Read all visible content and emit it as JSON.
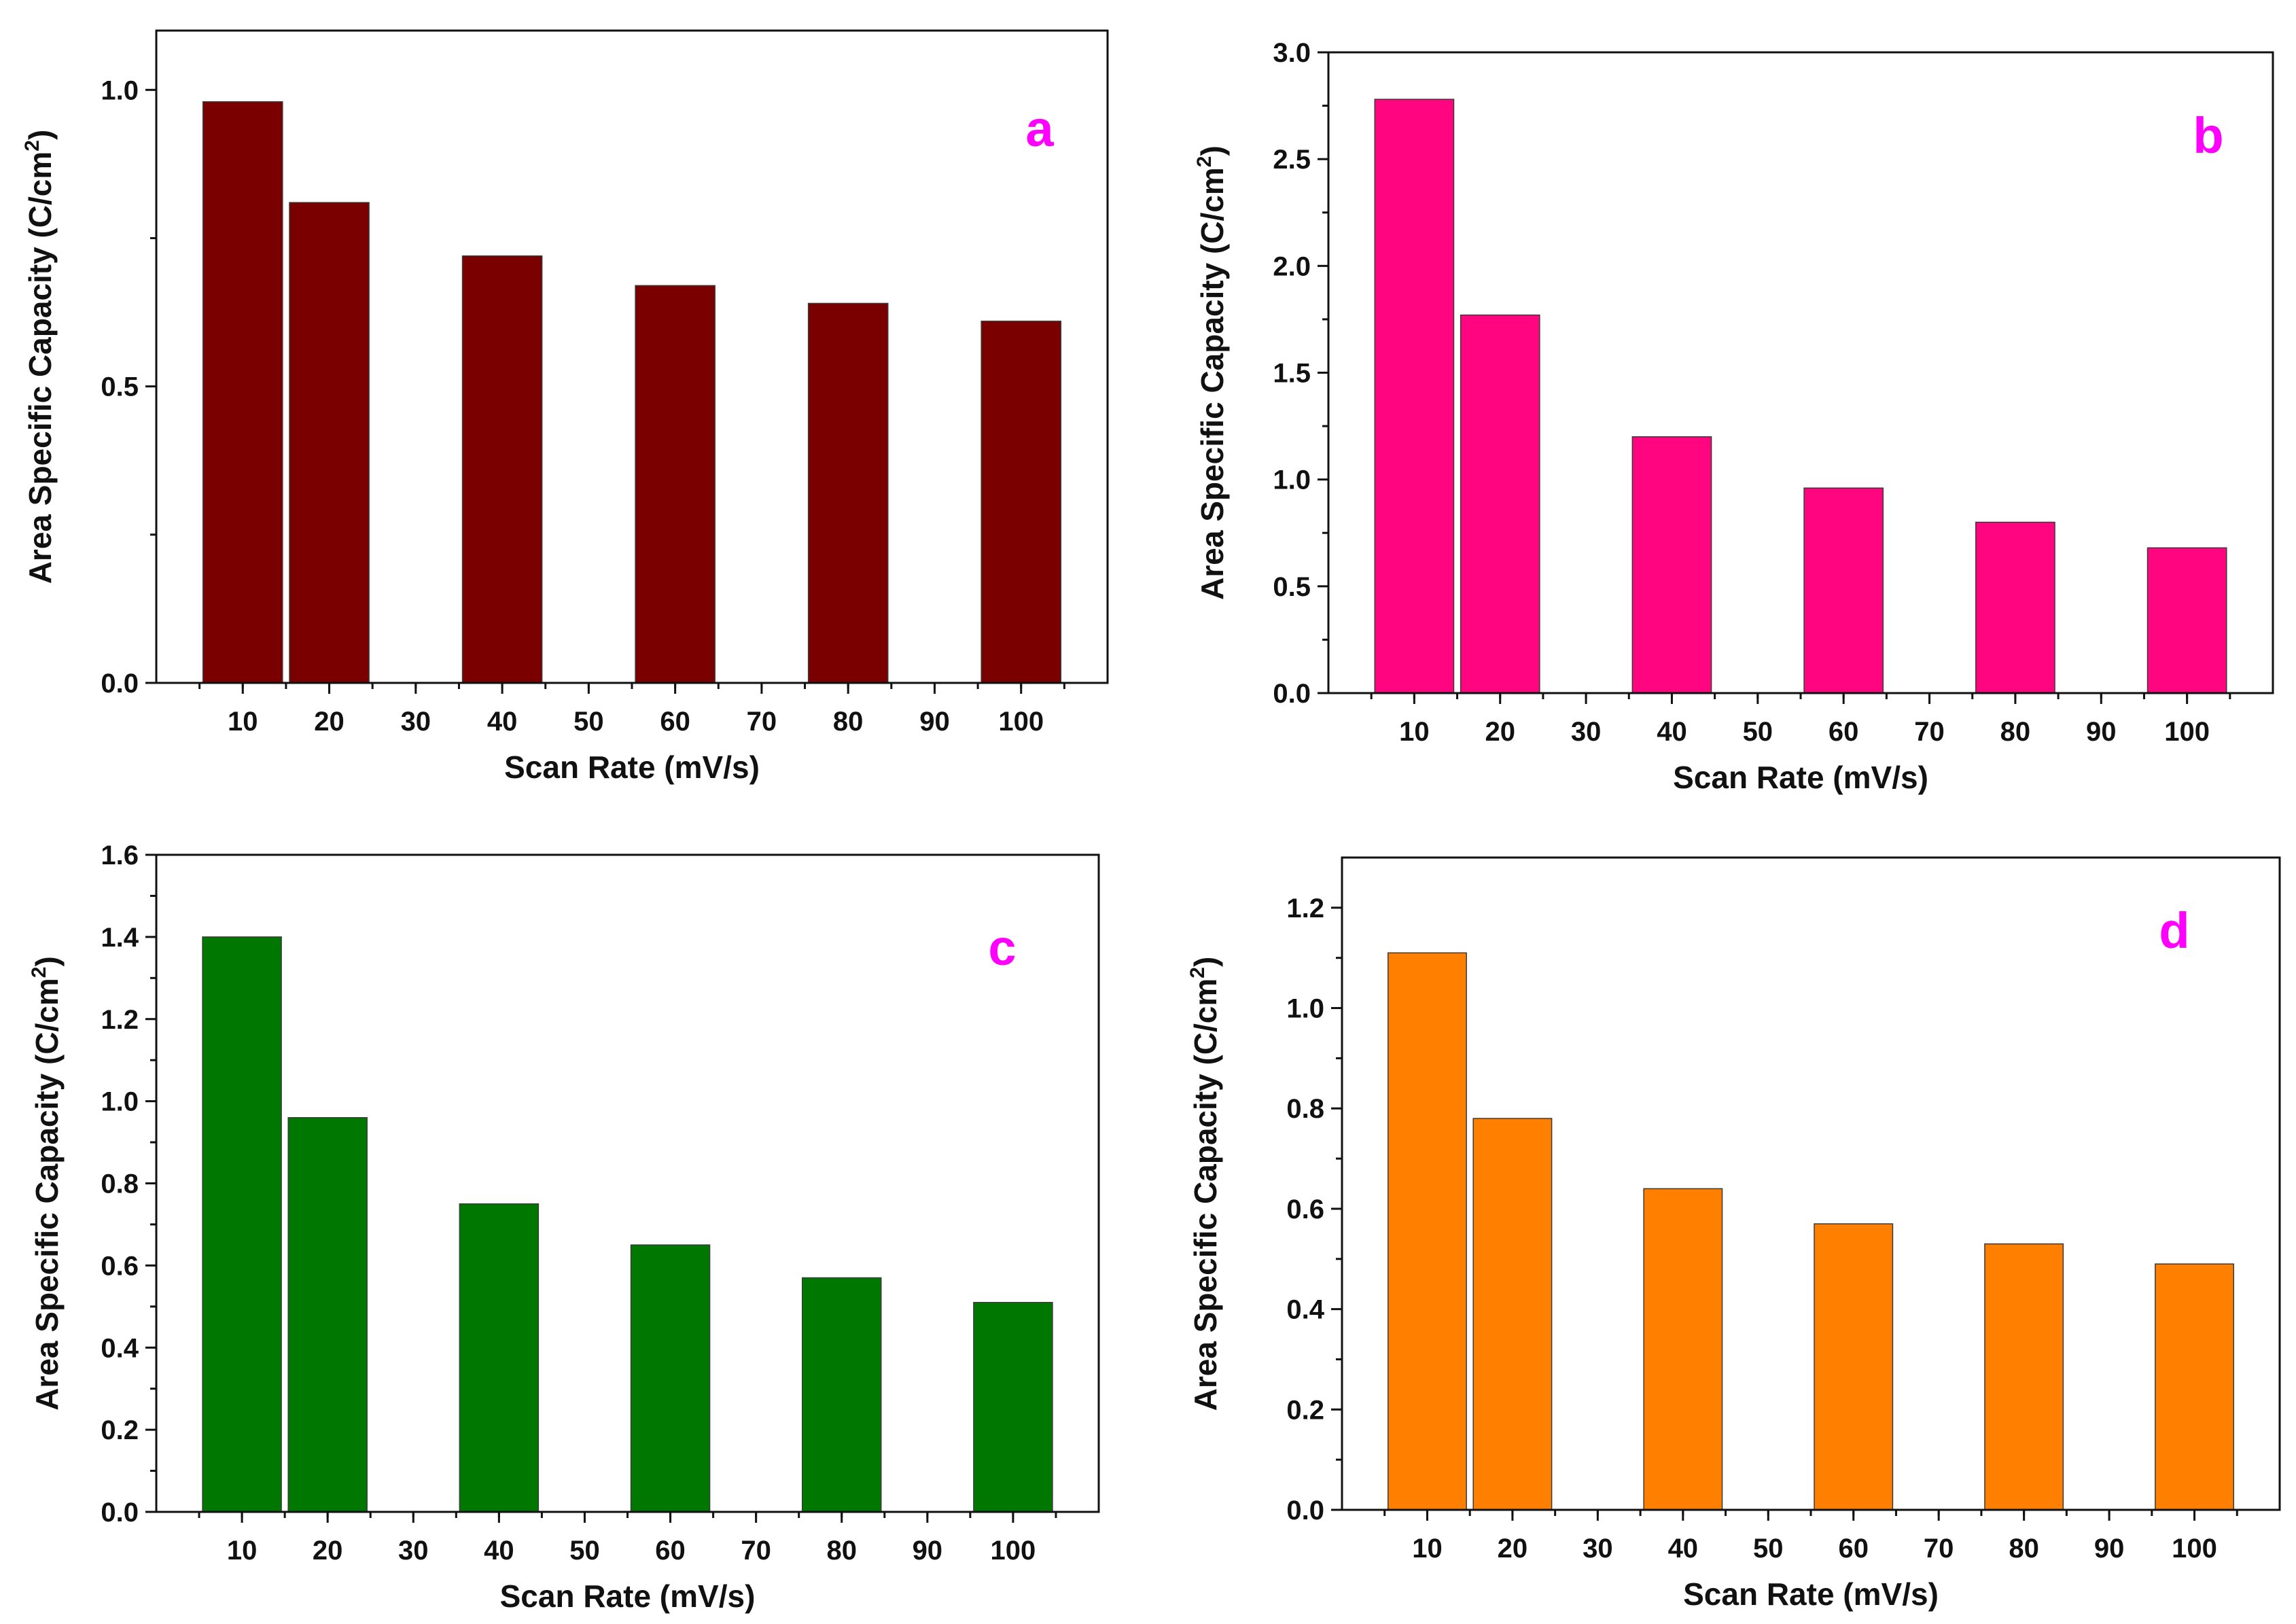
{
  "chart_data": [
    {
      "type": "bar",
      "panel_label": "a",
      "x": [
        10,
        20,
        40,
        60,
        80,
        100
      ],
      "values": [
        0.98,
        0.81,
        0.72,
        0.67,
        0.64,
        0.61
      ],
      "xticks": [
        "10",
        "20",
        "30",
        "40",
        "50",
        "60",
        "70",
        "80",
        "90",
        "100"
      ],
      "xlim": [
        0,
        110
      ],
      "yticks": [
        "0.0",
        "0.5",
        "1.0"
      ],
      "ylim": [
        0,
        1.1
      ],
      "xlabel": "Scan Rate (mV/s)",
      "ylabel": "Area Specific Capacity (C/cm",
      "ylabel_sup": "2",
      "ylabel_end": ")",
      "color": "#7a0000",
      "grid": false
    },
    {
      "type": "bar",
      "panel_label": "b",
      "x": [
        10,
        20,
        40,
        60,
        80,
        100
      ],
      "values": [
        2.78,
        1.77,
        1.2,
        0.96,
        0.8,
        0.68
      ],
      "xticks": [
        "10",
        "20",
        "30",
        "40",
        "50",
        "60",
        "70",
        "80",
        "90",
        "100"
      ],
      "xlim": [
        0,
        110
      ],
      "yticks": [
        "0.0",
        "0.5",
        "1.0",
        "1.5",
        "2.0",
        "2.5",
        "3.0"
      ],
      "ylim": [
        0,
        3.0
      ],
      "xlabel": "Scan Rate (mV/s)",
      "ylabel": "Area Specific Capacity (C/cm",
      "ylabel_sup": "2",
      "ylabel_end": ")",
      "color": "#ff0580",
      "grid": false
    },
    {
      "type": "bar",
      "panel_label": "c",
      "x": [
        10,
        20,
        40,
        60,
        80,
        100
      ],
      "values": [
        1.4,
        0.96,
        0.75,
        0.65,
        0.57,
        0.51
      ],
      "xticks": [
        "10",
        "20",
        "30",
        "40",
        "50",
        "60",
        "70",
        "80",
        "90",
        "100"
      ],
      "xlim": [
        0,
        110
      ],
      "yticks": [
        "0.0",
        "0.2",
        "0.4",
        "0.6",
        "0.8",
        "1.0",
        "1.2",
        "1.4",
        "1.6"
      ],
      "ylim": [
        0,
        1.6
      ],
      "xlabel": "Scan Rate (mV/s)",
      "ylabel": "Area Specific Capacity (C/cm",
      "ylabel_sup": "2",
      "ylabel_end": ")",
      "color": "#007800",
      "grid": false
    },
    {
      "type": "bar",
      "panel_label": "d",
      "x": [
        10,
        20,
        40,
        60,
        80,
        100
      ],
      "values": [
        1.11,
        0.78,
        0.64,
        0.57,
        0.53,
        0.49
      ],
      "xticks": [
        "10",
        "20",
        "30",
        "40",
        "50",
        "60",
        "70",
        "80",
        "90",
        "100"
      ],
      "xlim": [
        0,
        110
      ],
      "yticks": [
        "0.0",
        "0.2",
        "0.4",
        "0.6",
        "0.8",
        "1.0",
        "1.2"
      ],
      "ylim": [
        0,
        1.3
      ],
      "xlabel": "Scan Rate (mV/s)",
      "ylabel": "Area Specific Capacity (C/cm",
      "ylabel_sup": "2",
      "ylabel_end": ")",
      "color": "#ff7f00",
      "grid": false
    }
  ]
}
